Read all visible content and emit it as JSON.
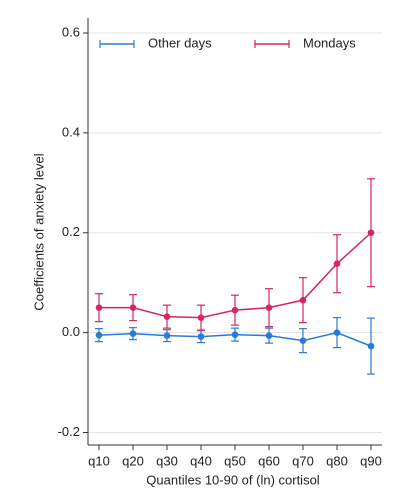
{
  "chart_data": {
    "type": "line-errorbar",
    "x_label": "Quantiles 10-90 of (ln) cortisol",
    "y_label": "Coefficients of anxiety level",
    "categories": [
      "q10",
      "q20",
      "q30",
      "q40",
      "q50",
      "q60",
      "q70",
      "q80",
      "q90"
    ],
    "series": [
      {
        "name": "Other days",
        "color": "#2b7bd6",
        "values": [
          -0.005,
          -0.002,
          -0.006,
          -0.008,
          -0.004,
          -0.006,
          -0.016,
          0.0,
          -0.027
        ],
        "errors": [
          0.013,
          0.012,
          0.012,
          0.012,
          0.013,
          0.015,
          0.024,
          0.03,
          0.056
        ]
      },
      {
        "name": "Mondays",
        "color": "#d4275c",
        "values": [
          0.05,
          0.05,
          0.032,
          0.03,
          0.045,
          0.05,
          0.065,
          0.138,
          0.2
        ],
        "errors": [
          0.028,
          0.026,
          0.023,
          0.025,
          0.03,
          0.038,
          0.045,
          0.058,
          0.108
        ]
      }
    ],
    "ylim": [
      -0.225,
      0.63
    ],
    "yticks": [
      {
        "value": -0.2,
        "label": "-0.2"
      },
      {
        "value": 0,
        "label": "0.0"
      },
      {
        "value": 0.2,
        "label": "0.2"
      },
      {
        "value": 0.4,
        "label": "0.4"
      },
      {
        "value": 0.6,
        "label": "0.6"
      }
    ],
    "grid": true
  }
}
